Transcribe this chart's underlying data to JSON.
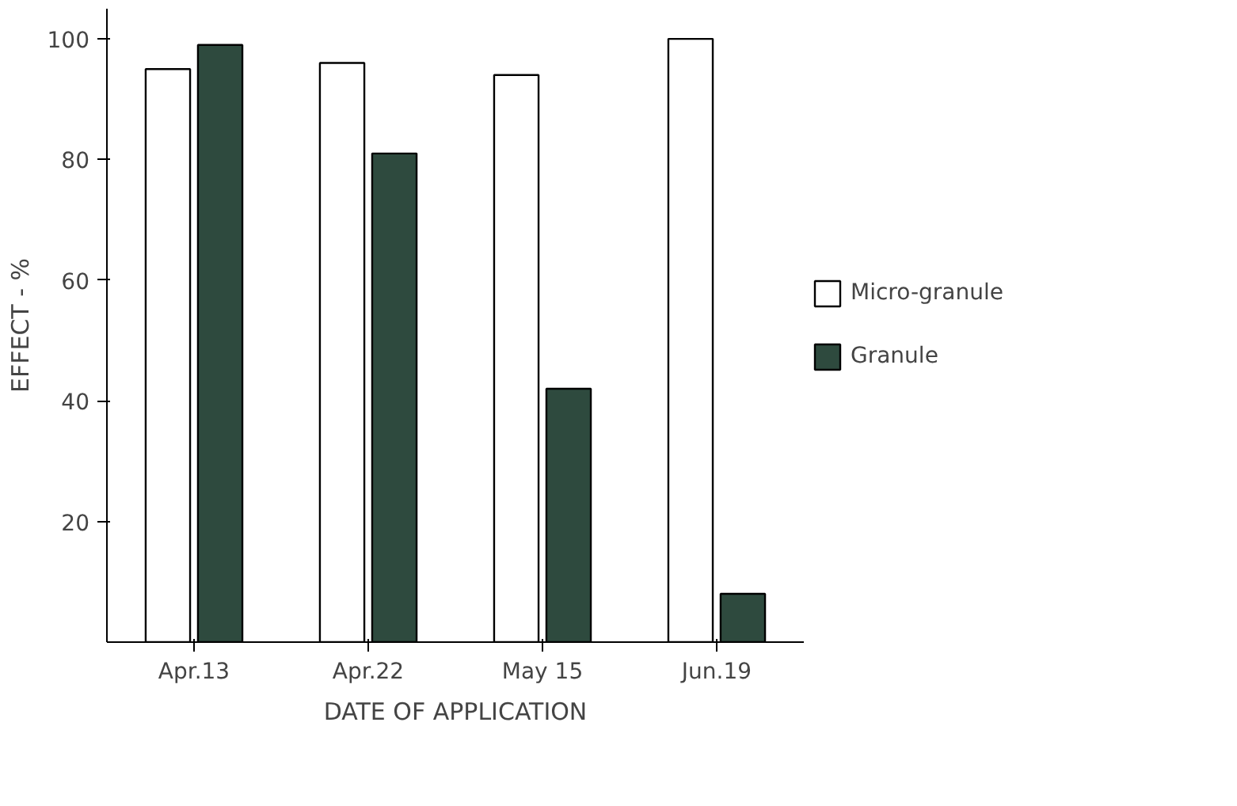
{
  "chart_data": {
    "type": "bar",
    "xlabel": "DATE OF APPLICATION",
    "ylabel": "EFFECT - %",
    "categories": [
      "Apr.13",
      "Apr.22",
      "May 15",
      "Jun.19"
    ],
    "series": [
      {
        "name": "Micro-granule",
        "color": "#ffffff",
        "values": [
          95,
          96,
          94,
          100
        ]
      },
      {
        "name": "Granule",
        "color": "#2e4a3e",
        "values": [
          99,
          81,
          42,
          8
        ]
      }
    ],
    "ylim": [
      0,
      105
    ],
    "yticks": [
      20,
      40,
      60,
      80,
      100
    ],
    "grid": false,
    "legend": "right"
  }
}
